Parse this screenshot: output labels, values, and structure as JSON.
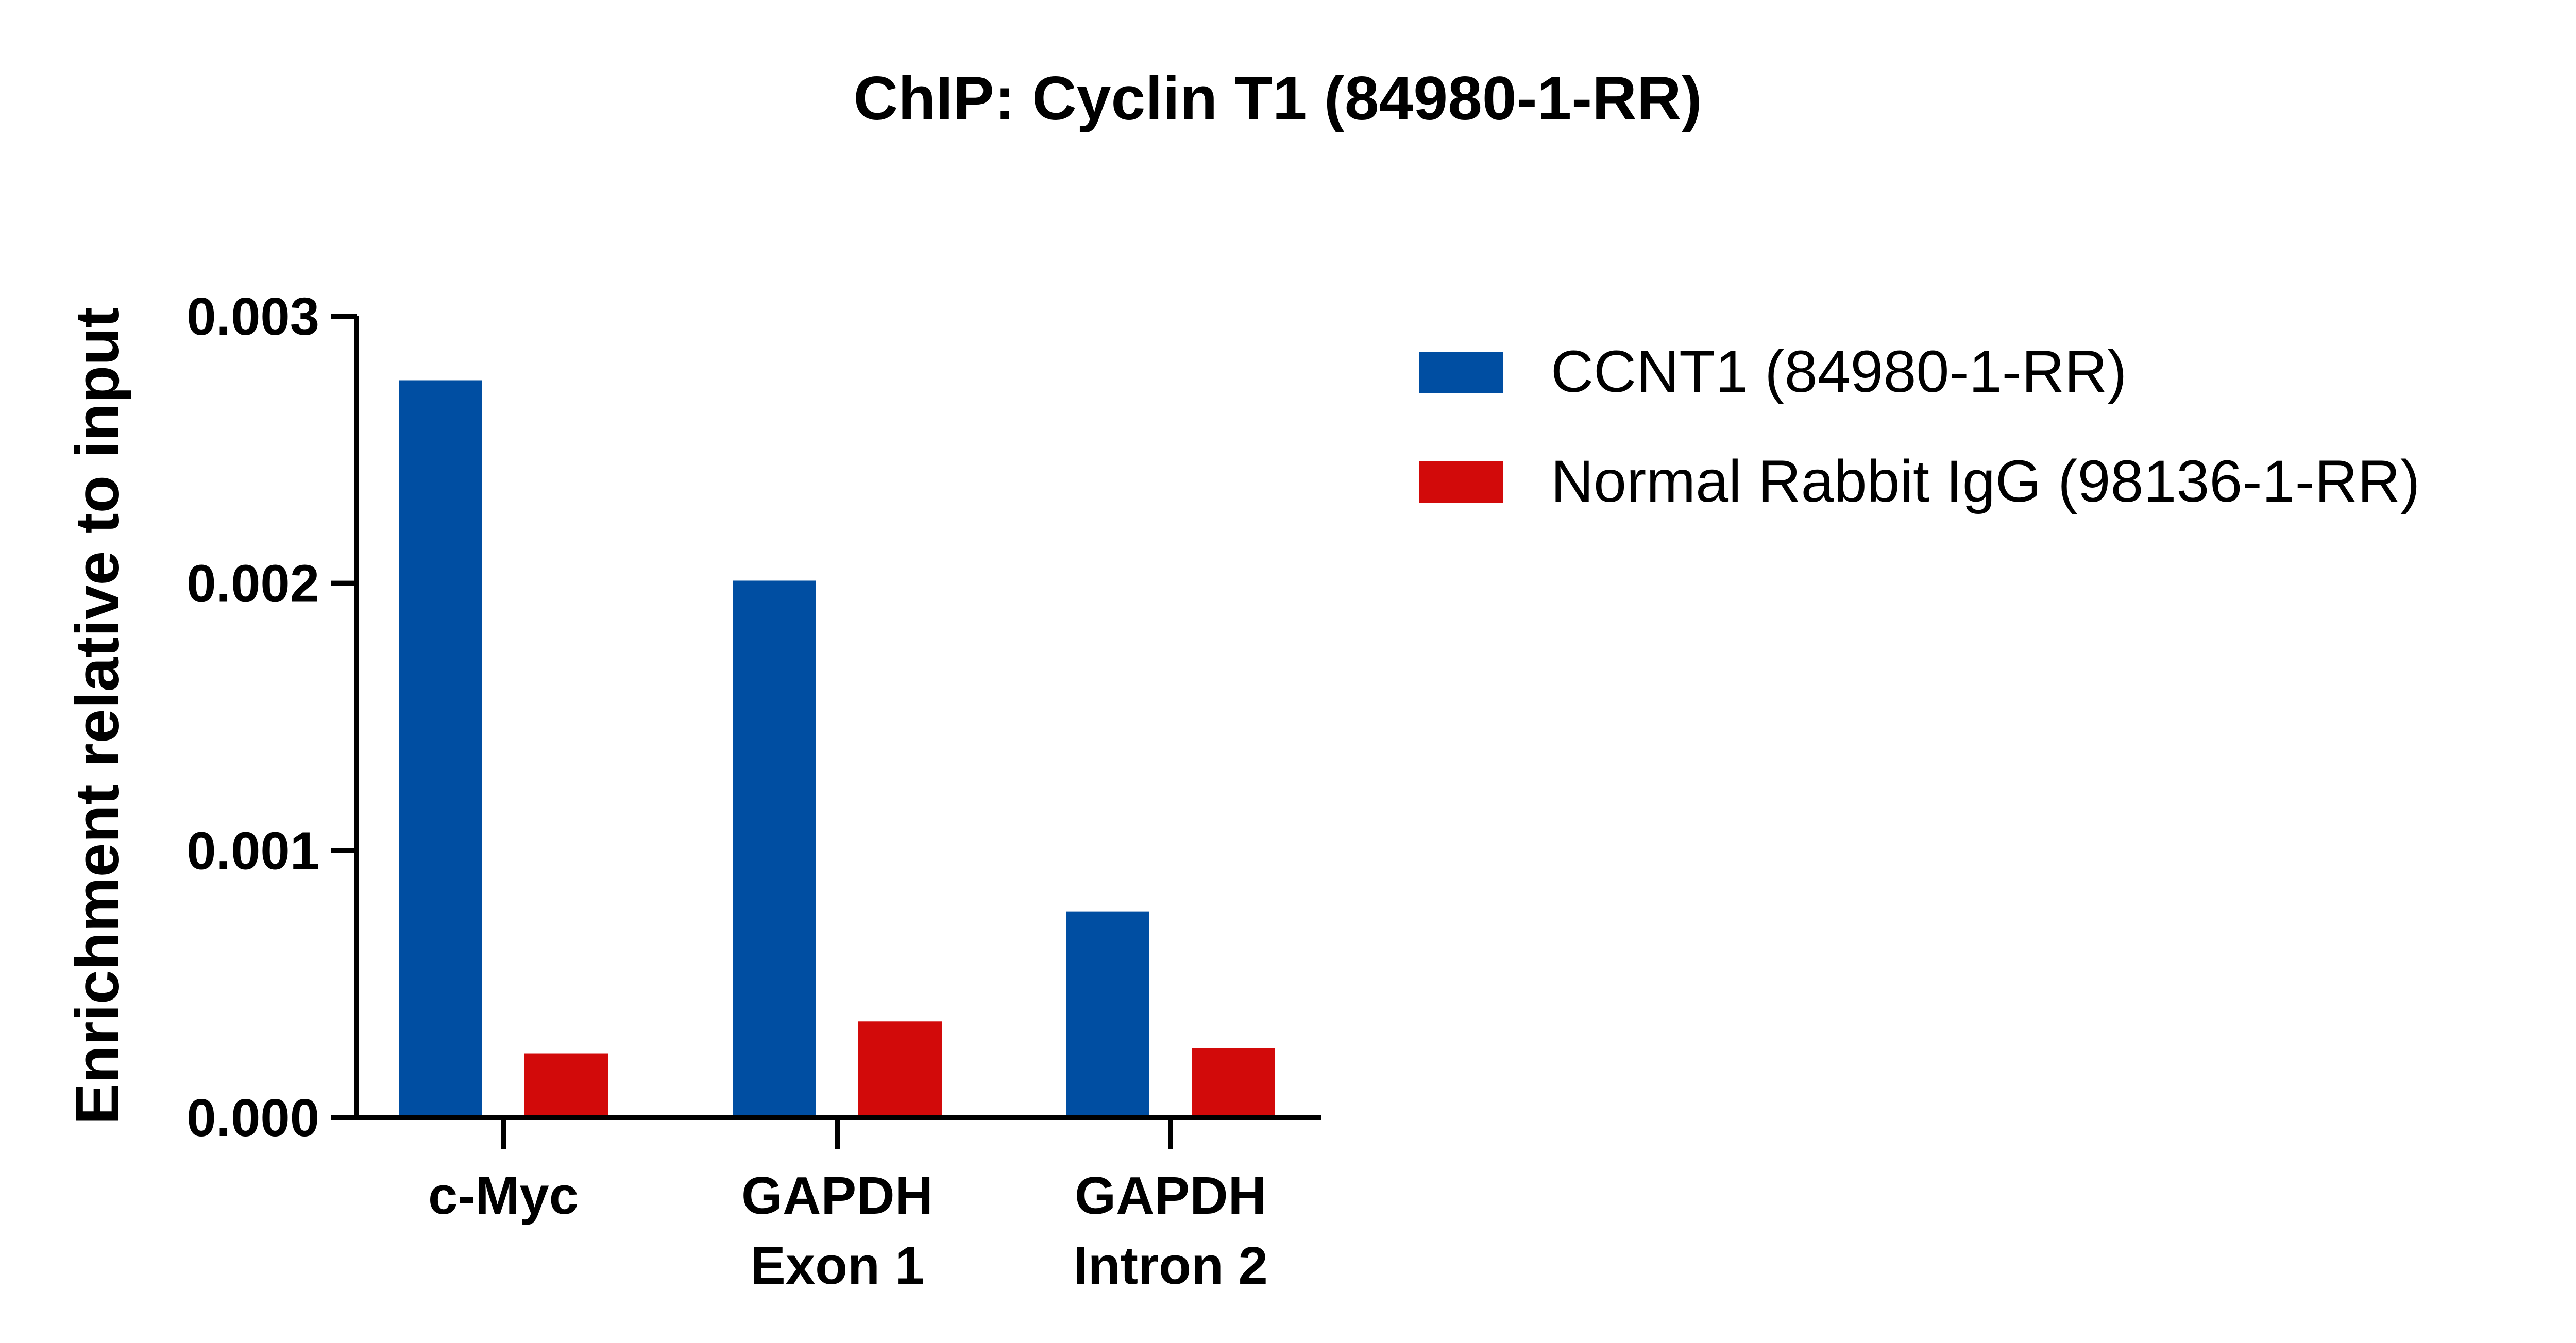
{
  "chart_data": {
    "type": "bar",
    "title": "ChIP: Cyclin T1 (84980-1-RR)",
    "xlabel": "",
    "ylabel": "Enrichment relative to input",
    "ylim": [
      0,
      0.003
    ],
    "yticks": [
      "0.000",
      "0.001",
      "0.002",
      "0.003"
    ],
    "categories": [
      [
        "c-Myc"
      ],
      [
        "GAPDH",
        "Exon 1"
      ],
      [
        "GAPDH",
        "Intron 2"
      ]
    ],
    "series": [
      {
        "name": "CCNT1 (84980-1-RR)",
        "color": "#004EA2",
        "values": [
          0.00276,
          0.00201,
          0.00077
        ]
      },
      {
        "name": "Normal Rabbit IgG (98136-1-RR)",
        "color": "#D20A0A",
        "values": [
          0.00024,
          0.00036,
          0.00026
        ]
      }
    ],
    "legend_position": "top-right",
    "grid": false
  }
}
